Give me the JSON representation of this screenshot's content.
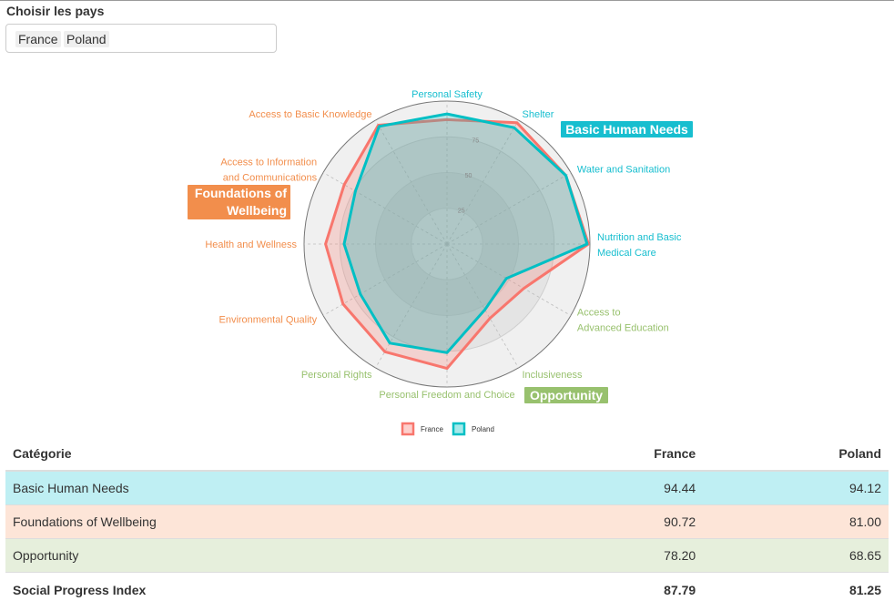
{
  "filter": {
    "label": "Choisir les pays",
    "selected": [
      "France",
      "Poland"
    ]
  },
  "chart_data": {
    "type": "radar",
    "axes": [
      "Personal Safety",
      "Shelter",
      "Water and Sanitation",
      "Nutrition and Basic Medical Care",
      "Access to Advanced Education",
      "Inclusiveness",
      "Personal Freedom and Choice",
      "Personal Rights",
      "Environmental Quality",
      "Health and Wellness",
      "Access to Information and Communications",
      "Access to Basic Knowledge"
    ],
    "axis_groups": [
      "Basic Human Needs",
      "Basic Human Needs",
      "Basic Human Needs",
      "Basic Human Needs",
      "Opportunity",
      "Opportunity",
      "Opportunity",
      "Opportunity",
      "Foundations of Wellbeing",
      "Foundations of Wellbeing",
      "Foundations of Wellbeing",
      "Foundations of Wellbeing"
    ],
    "groups": [
      {
        "name": "Basic Human Needs",
        "color": "#17becf"
      },
      {
        "name": "Foundations of Wellbeing",
        "color": "#f28e4c"
      },
      {
        "name": "Opportunity",
        "color": "#98c16e"
      }
    ],
    "rlim": [
      0,
      100
    ],
    "rticks": [
      "25",
      "50",
      "75"
    ],
    "series": [
      {
        "name": "France",
        "color": "#f8766d",
        "values": [
          87,
          98,
          96,
          99,
          62,
          60,
          87,
          87,
          84,
          85,
          83,
          96
        ]
      },
      {
        "name": "Poland",
        "color": "#00bfc4",
        "values": [
          91,
          94,
          96,
          98,
          48,
          53,
          76,
          80,
          70,
          72,
          74,
          95
        ]
      }
    ],
    "legend_position": "bottom"
  },
  "table": {
    "headers": [
      "Catégorie",
      "France",
      "Poland"
    ],
    "rows": [
      {
        "label": "Basic Human Needs",
        "france": "94.44",
        "poland": "94.12",
        "bg": "#bfeff3"
      },
      {
        "label": "Foundations of Wellbeing",
        "france": "90.72",
        "poland": "81.00",
        "bg": "#fde5d8"
      },
      {
        "label": "Opportunity",
        "france": "78.20",
        "poland": "68.65",
        "bg": "#e6efdc"
      }
    ],
    "total": {
      "label": "Social Progress Index",
      "france": "87.79",
      "poland": "81.25"
    }
  }
}
